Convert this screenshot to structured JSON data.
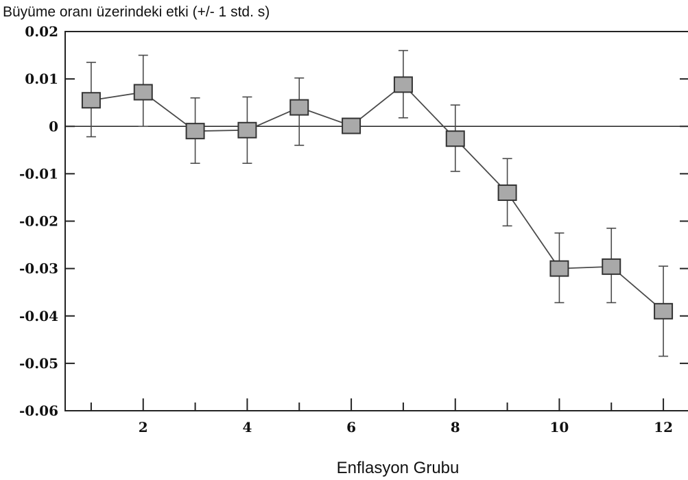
{
  "chart_data": {
    "type": "line",
    "title": "Büyüme oranı üzerindeki etki (+/- 1 std. s)",
    "xlabel": "Enflasyon Grubu",
    "ylabel": "",
    "xlim": [
      0.5,
      12.5
    ],
    "ylim": [
      -0.06,
      0.02
    ],
    "xticks": [
      2,
      4,
      6,
      8,
      10,
      12
    ],
    "xtick_labels": [
      "2",
      "4",
      "6",
      "8",
      "10",
      "12"
    ],
    "minor_xticks": [
      1,
      3,
      5,
      7,
      9,
      11
    ],
    "yticks": [
      0.02,
      0.01,
      0,
      -0.01,
      -0.02,
      -0.03,
      -0.04,
      -0.05,
      -0.06
    ],
    "ytick_labels": [
      "0.02",
      "0.01",
      "0",
      "-0.01",
      "-0.02",
      "-0.03",
      "-0.04",
      "-0.05",
      "-0.06"
    ],
    "reference_line_y": 0,
    "grid": false,
    "marker": "square",
    "series": [
      {
        "x": [
          1,
          2,
          3,
          4,
          5,
          6,
          7,
          8,
          9,
          10,
          11,
          12
        ],
        "y": [
          0.0055,
          0.0072,
          -0.001,
          -0.0008,
          0.004,
          0.0001,
          0.0088,
          -0.0026,
          -0.014,
          -0.03,
          -0.0296,
          -0.039
        ],
        "err_low": [
          -0.0022,
          0.0,
          -0.0078,
          -0.0078,
          -0.004,
          0.0001,
          0.0018,
          -0.0095,
          -0.021,
          -0.0372,
          -0.0372,
          -0.0485
        ],
        "err_high": [
          0.0135,
          0.015,
          0.006,
          0.0062,
          0.0102,
          0.0001,
          0.016,
          0.0045,
          -0.0068,
          -0.0225,
          -0.0215,
          -0.0295
        ]
      }
    ],
    "colors": {
      "marker_fill": "#a9a9a9",
      "line": "#4a4a4a",
      "axis": "#222222"
    }
  }
}
